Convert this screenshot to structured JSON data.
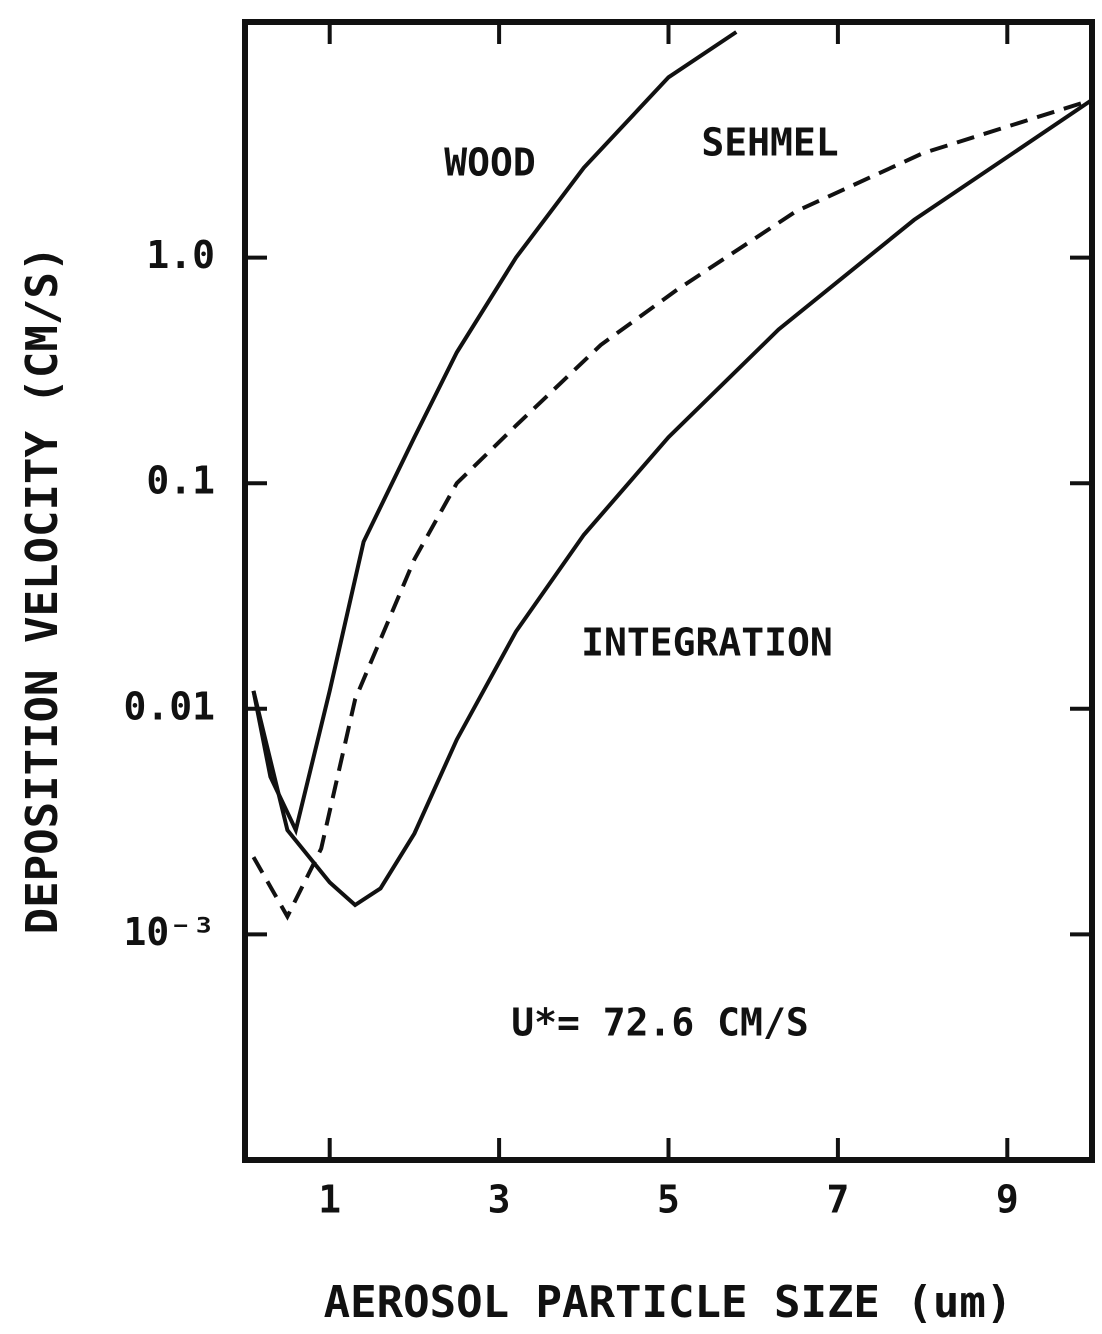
{
  "chart_data": {
    "type": "line",
    "ylabel": "DEPOSITION VELOCITY (CM/S)",
    "xlabel": "AEROSOL PARTICLE SIZE (um)",
    "annotations": [
      "U*= 72.6 CM/S"
    ],
    "xlim": [
      0,
      10
    ],
    "xticks": [
      1,
      3,
      5,
      7,
      9
    ],
    "ylim": [
      0.0001,
      10
    ],
    "yscale": "log",
    "yticks": [
      {
        "value": 1,
        "label": "1.0"
      },
      0.1,
      0.01,
      {
        "value": 0.001,
        "label": "10⁻³"
      }
    ],
    "series": [
      {
        "name": "WOOD",
        "color": "#111111",
        "style": "solid",
        "x": [
          0.1,
          0.3,
          0.6,
          1.0,
          1.4,
          2.0,
          2.5,
          3.2,
          4.0,
          5.0,
          5.8
        ],
        "values": [
          0.012,
          0.005,
          0.0029,
          0.012,
          0.055,
          0.16,
          0.38,
          1.0,
          2.5,
          6.3,
          10
        ]
      },
      {
        "name": "SEHMEL",
        "color": "#111111",
        "style": "dashed",
        "x": [
          0.1,
          0.5,
          0.9,
          1.3,
          2.0,
          2.5,
          3.2,
          4.2,
          5.1,
          6.5,
          8.0,
          10
        ],
        "values": [
          0.0022,
          0.0012,
          0.0024,
          0.011,
          0.046,
          0.1,
          0.18,
          0.41,
          0.72,
          1.6,
          2.9,
          5.0
        ]
      },
      {
        "name": "INTEGRATION",
        "color": "#111111",
        "style": "solid",
        "x": [
          0.1,
          0.5,
          1.0,
          1.3,
          1.6,
          2.0,
          2.5,
          3.2,
          4.0,
          5.0,
          6.3,
          7.9,
          10
        ],
        "values": [
          0.012,
          0.0029,
          0.0017,
          0.00135,
          0.0016,
          0.0028,
          0.0073,
          0.022,
          0.059,
          0.16,
          0.48,
          1.47,
          5.0
        ]
      }
    ]
  }
}
